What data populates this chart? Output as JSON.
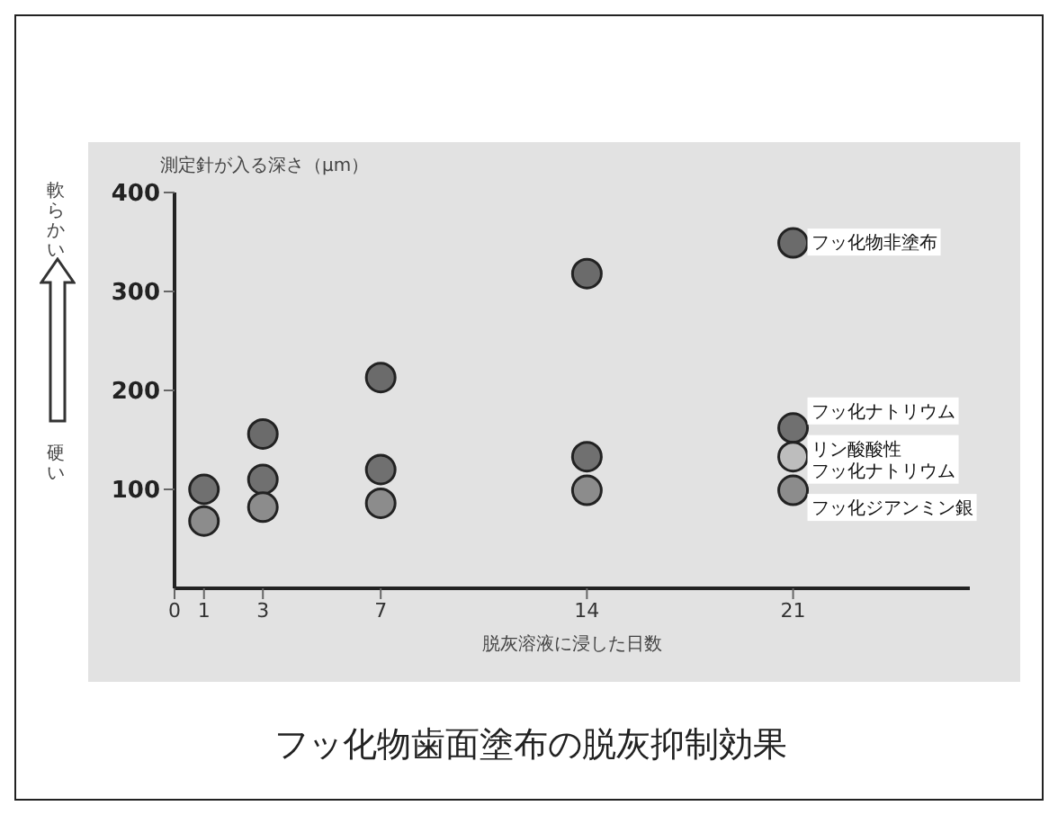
{
  "chart_data": {
    "type": "scatter",
    "title": "フッ化物歯面塗布の脱灰抑制効果",
    "xlabel": "脱灰溶液に浸した日数",
    "ylabel": "測定針が入る深さ（μm）",
    "annotations": [
      "軟らかい",
      "硬い"
    ],
    "x": [
      1,
      3,
      7,
      14,
      21
    ],
    "series": [
      {
        "name": "フッ化物非塗布",
        "color": "#6b6b6b",
        "values": [
          null,
          156,
          213,
          318,
          349
        ]
      },
      {
        "name": "フッ化ナトリウム",
        "color": "#707070",
        "values": [
          100,
          110,
          120,
          133,
          162
        ]
      },
      {
        "name": "リン酸酸性フッ化ナトリウム",
        "color": "#bdbdbd",
        "values": [
          null,
          null,
          null,
          null,
          133
        ]
      },
      {
        "name": "フッ化ジアンミン銀",
        "color": "#8c8c8c",
        "values": [
          68,
          82,
          86,
          99,
          99
        ]
      }
    ],
    "xlim": [
      0,
      27
    ],
    "xticks": [
      0,
      1,
      3,
      7,
      14,
      21
    ],
    "ylim": [
      0,
      400
    ],
    "yticks": [
      100,
      200,
      300,
      400
    ],
    "marker": "circle",
    "grid": false,
    "legend": false
  }
}
